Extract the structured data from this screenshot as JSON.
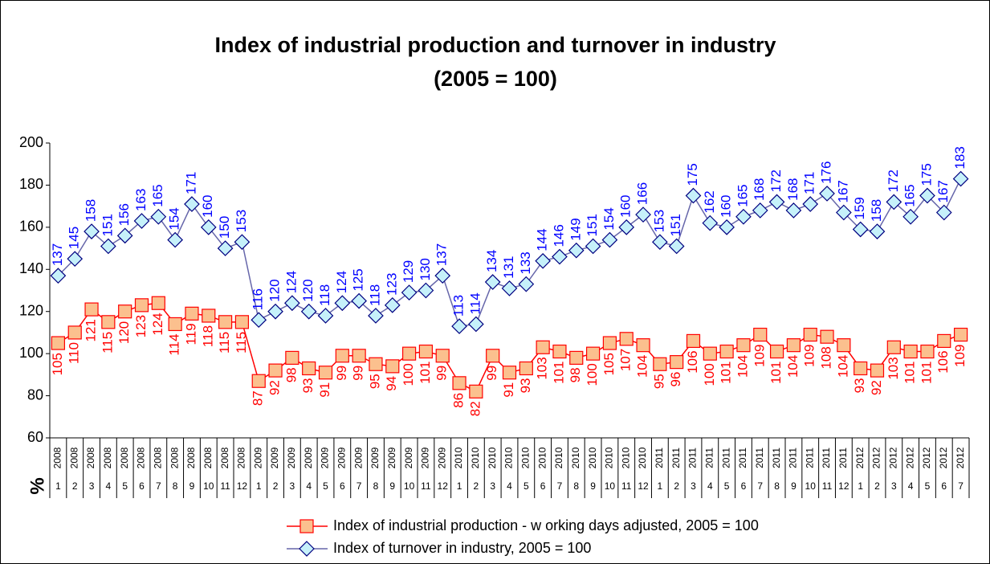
{
  "chart_data": {
    "type": "line",
    "title": "Index of industrial production and turnover in industry",
    "subtitle": "(2005 = 100)",
    "y_label": "%",
    "years": [
      "2008",
      "2008",
      "2008",
      "2008",
      "2008",
      "2008",
      "2008",
      "2008",
      "2008",
      "2008",
      "2008",
      "2008",
      "2009",
      "2009",
      "2009",
      "2009",
      "2009",
      "2009",
      "2009",
      "2009",
      "2009",
      "2009",
      "2009",
      "2009",
      "2010",
      "2010",
      "2010",
      "2010",
      "2010",
      "2010",
      "2010",
      "2010",
      "2010",
      "2010",
      "2010",
      "2010",
      "2011",
      "2011",
      "2011",
      "2011",
      "2011",
      "2011",
      "2011",
      "2011",
      "2011",
      "2011",
      "2011",
      "2011",
      "2012",
      "2012",
      "2012",
      "2012",
      "2012",
      "2012",
      "2012"
    ],
    "categories": [
      "1",
      "2",
      "3",
      "4",
      "5",
      "6",
      "7",
      "8",
      "9",
      "10",
      "11",
      "12",
      "1",
      "2",
      "3",
      "4",
      "5",
      "6",
      "7",
      "8",
      "9",
      "10",
      "11",
      "12",
      "1",
      "2",
      "3",
      "4",
      "5",
      "6",
      "7",
      "8",
      "9",
      "10",
      "11",
      "12",
      "1",
      "2",
      "3",
      "4",
      "5",
      "6",
      "7",
      "8",
      "9",
      "10",
      "11",
      "12",
      "1",
      "2",
      "3",
      "4",
      "5",
      "6",
      "7"
    ],
    "series": [
      {
        "name": "Index of industrial production - w orking days adjusted, 2005 = 100",
        "color": "#ff0000",
        "marker": "square",
        "marker_fill": "#fbc08e",
        "label_color": "#ff0000",
        "label_side": "below",
        "values": [
          105,
          110,
          121,
          115,
          120,
          123,
          124,
          114,
          119,
          118,
          115,
          115,
          87,
          92,
          98,
          93,
          91,
          99,
          99,
          95,
          94,
          100,
          101,
          99,
          86,
          82,
          99,
          91,
          93,
          103,
          101,
          98,
          100,
          105,
          107,
          104,
          95,
          96,
          106,
          100,
          101,
          104,
          109,
          101,
          104,
          109,
          108,
          104,
          93,
          92,
          103,
          101,
          101,
          106,
          109
        ]
      },
      {
        "name": "Index of turnover in industry, 2005 = 100",
        "color": "#6666aa",
        "marker": "diamond",
        "marker_fill": "#c6f1fa",
        "marker_stroke": "#000080",
        "label_color": "#0000ff",
        "label_side": "above",
        "values": [
          137,
          145,
          158,
          151,
          156,
          163,
          165,
          154,
          171,
          160,
          150,
          153,
          116,
          120,
          124,
          120,
          118,
          124,
          125,
          118,
          123,
          129,
          130,
          137,
          113,
          114,
          134,
          131,
          133,
          144,
          146,
          149,
          151,
          154,
          160,
          166,
          153,
          151,
          175,
          162,
          160,
          165,
          168,
          172,
          168,
          171,
          176,
          167,
          159,
          158,
          172,
          165,
          175,
          167,
          183
        ]
      }
    ],
    "ylim": [
      60,
      200
    ],
    "yticks": [
      60,
      80,
      100,
      120,
      140,
      160,
      180,
      200
    ],
    "grid": false
  }
}
